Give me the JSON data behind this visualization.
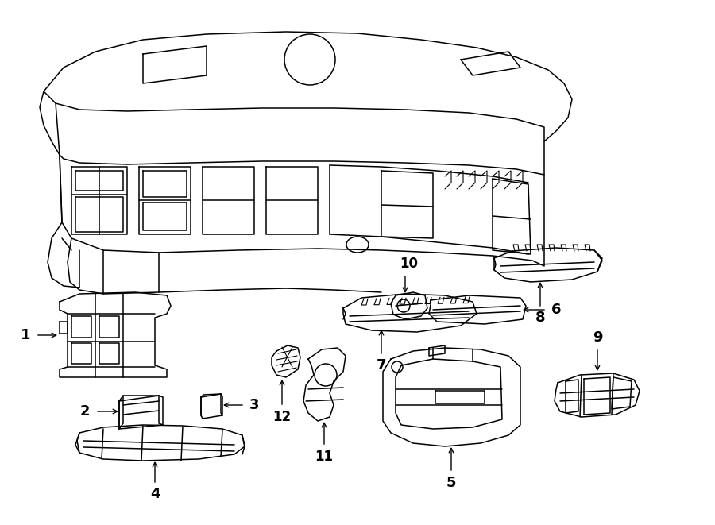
{
  "title": "",
  "background_color": "#ffffff",
  "line_color": "#000000",
  "figsize": [
    9.0,
    6.61
  ],
  "dpi": 100
}
